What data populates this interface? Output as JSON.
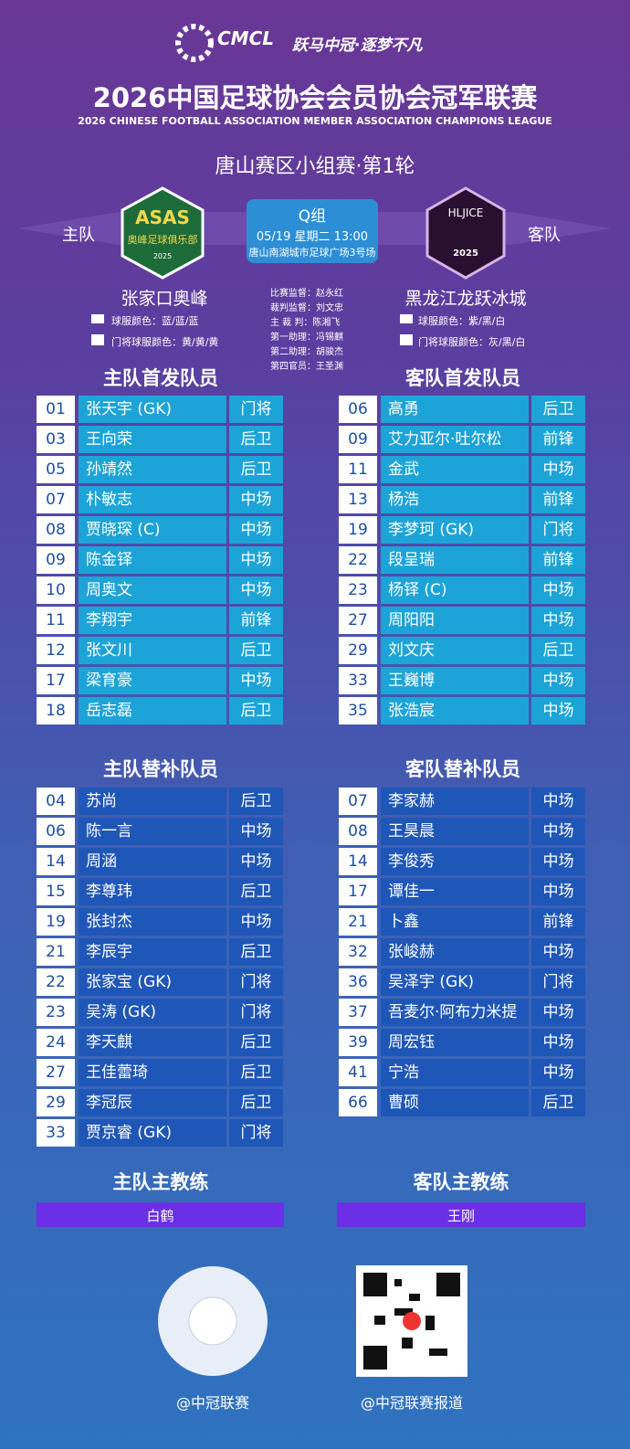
{
  "header": {
    "logo": "CMCL",
    "slogan": "跃马中冠·逐梦不凡",
    "title": "2026中国足球协会会员协会冠军联赛",
    "subtitle": "2026 CHINESE FOOTBALL ASSOCIATION MEMBER ASSOCIATION CHAMPIONS LEAGUE",
    "round": "唐山赛区小组赛·第1轮"
  },
  "match": {
    "home_label": "主队",
    "away_label": "客队",
    "group": "Q组",
    "datetime": "05/19 星期二 13:00",
    "venue": "唐山南湖城市足球广场3号场",
    "home_logo": {
      "abbr": "ASAS",
      "name": "奥峰足球俱乐部",
      "year": "2025"
    },
    "away_logo": {
      "abbr": "HLJICE",
      "year": "2025"
    },
    "home_team": "张家口奥峰",
    "away_team": "黑龙江龙跃冰城",
    "home_kit": "球服颜色：蓝/蓝/蓝",
    "home_gk_kit": "门将球服颜色：黄/黄/黄",
    "away_kit": "球服颜色：紫/黑/白",
    "away_gk_kit": "门将球服颜色：灰/黑/白",
    "officials": [
      "比赛监督：赵永红",
      "裁判监督：刘文忠",
      "主 裁 判：陈湘飞",
      "第一助理：冯锡麒",
      "第二助理：胡骏杰",
      "第四官员：王圣渊"
    ]
  },
  "home_starters": {
    "title": "主队首发队员",
    "rows": [
      [
        "01",
        "张天宇 (GK)",
        "门将"
      ],
      [
        "03",
        "王向荣",
        "后卫"
      ],
      [
        "05",
        "孙靖然",
        "后卫"
      ],
      [
        "07",
        "朴敏志",
        "中场"
      ],
      [
        "08",
        "贾晓琛 (C)",
        "中场"
      ],
      [
        "09",
        "陈金铎",
        "中场"
      ],
      [
        "10",
        "周奥文",
        "中场"
      ],
      [
        "11",
        "李翔宇",
        "前锋"
      ],
      [
        "12",
        "张文川",
        "后卫"
      ],
      [
        "17",
        "梁育豪",
        "中场"
      ],
      [
        "18",
        "岳志磊",
        "后卫"
      ]
    ]
  },
  "away_starters": {
    "title": "客队首发队员",
    "rows": [
      [
        "06",
        "高勇",
        "后卫"
      ],
      [
        "09",
        "艾力亚尔·吐尔松",
        "前锋"
      ],
      [
        "11",
        "金武",
        "中场"
      ],
      [
        "13",
        "杨浩",
        "前锋"
      ],
      [
        "19",
        "李梦珂 (GK)",
        "门将"
      ],
      [
        "22",
        "段呈瑞",
        "前锋"
      ],
      [
        "23",
        "杨铎 (C)",
        "中场"
      ],
      [
        "27",
        "周阳阳",
        "中场"
      ],
      [
        "29",
        "刘文庆",
        "后卫"
      ],
      [
        "33",
        "王巍博",
        "中场"
      ],
      [
        "35",
        "张浩宸",
        "中场"
      ]
    ]
  },
  "home_subs": {
    "title": "主队替补队员",
    "rows": [
      [
        "04",
        "苏尚",
        "后卫"
      ],
      [
        "06",
        "陈一言",
        "中场"
      ],
      [
        "14",
        "周涵",
        "中场"
      ],
      [
        "15",
        "李尊玮",
        "后卫"
      ],
      [
        "19",
        "张封杰",
        "中场"
      ],
      [
        "21",
        "李辰宇",
        "后卫"
      ],
      [
        "22",
        "张家宝 (GK)",
        "门将"
      ],
      [
        "23",
        "吴涛 (GK)",
        "门将"
      ],
      [
        "24",
        "李天麒",
        "后卫"
      ],
      [
        "27",
        "王佳蕾琦",
        "后卫"
      ],
      [
        "29",
        "李冠辰",
        "后卫"
      ],
      [
        "33",
        "贾京睿 (GK)",
        "门将"
      ]
    ]
  },
  "away_subs": {
    "title": "客队替补队员",
    "rows": [
      [
        "07",
        "李家赫",
        "中场"
      ],
      [
        "08",
        "王昊晨",
        "中场"
      ],
      [
        "14",
        "李俊秀",
        "中场"
      ],
      [
        "17",
        "谭佳一",
        "中场"
      ],
      [
        "21",
        "卜鑫",
        "前锋"
      ],
      [
        "32",
        "张峻赫",
        "中场"
      ],
      [
        "36",
        "吴泽宇 (GK)",
        "门将"
      ],
      [
        "37",
        "吾麦尔·阿布力米提",
        "中场"
      ],
      [
        "39",
        "周宏钰",
        "中场"
      ],
      [
        "41",
        "宁浩",
        "中场"
      ],
      [
        "66",
        "曹硕",
        "后卫"
      ]
    ]
  },
  "coaches": {
    "home_title": "主队主教练",
    "home": "白鹤",
    "away_title": "客队主教练",
    "away": "王刚"
  },
  "footer": {
    "left": "@中冠联赛",
    "right": "@中冠联赛报道"
  }
}
